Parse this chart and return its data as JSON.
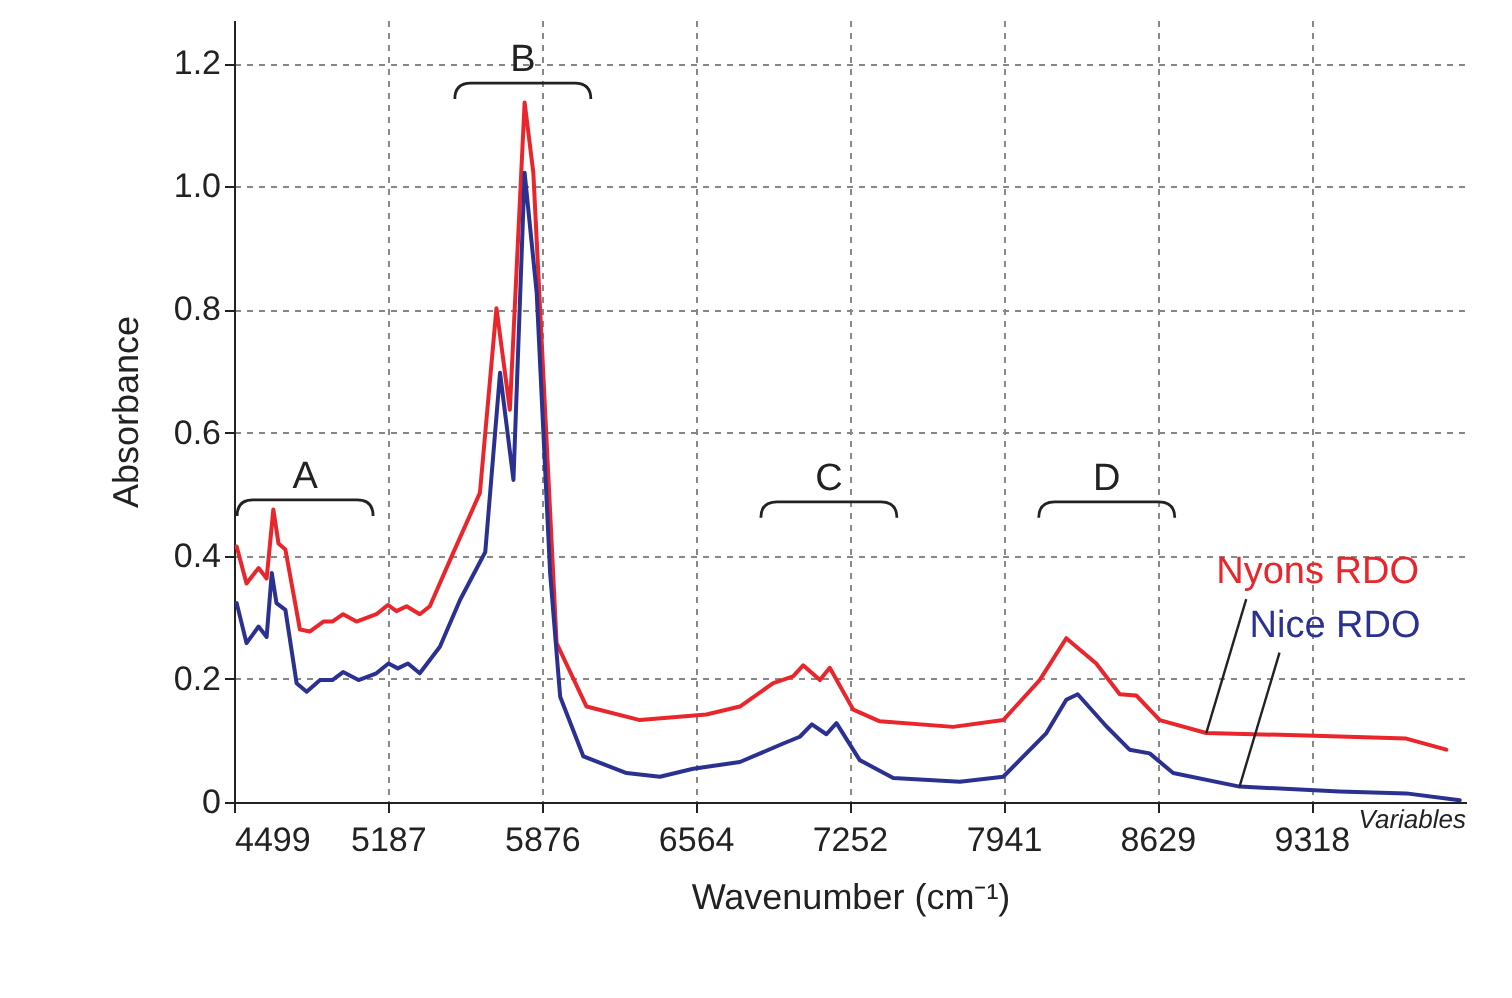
{
  "chart_data": {
    "type": "line",
    "xlabel": "Wavenumber (cm⁻¹)",
    "ylabel": "Absorbance",
    "xlim": [
      4499,
      10010
    ],
    "ylim": [
      0,
      1.27
    ],
    "xticks": [
      4499,
      5187,
      5876,
      6564,
      7252,
      7941,
      8629,
      9318
    ],
    "yticks": [
      0,
      0.2,
      0.4,
      0.6,
      0.8,
      {
        "value": 1,
        "label": "1.0"
      },
      1.2
    ],
    "grid": true,
    "line_style": "solid",
    "marker": "none",
    "annotations": [
      "A",
      "B",
      "C",
      "D",
      "Variables"
    ],
    "series": [
      {
        "name": "Nyons RDO",
        "color": "#e8262b",
        "x": [
          4511,
          4555,
          4609,
          4645,
          4675,
          4698,
          4729,
          4794,
          4839,
          4899,
          4939,
          4987,
          5047,
          5136,
          5187,
          5226,
          5271,
          5330,
          5375,
          5480,
          5599,
          5673,
          5733,
          5799,
          5838,
          5897,
          5942,
          6076,
          6315,
          6612,
          6762,
          6911,
          7000,
          7045,
          7120,
          7164,
          7269,
          7388,
          7716,
          7940,
          8103,
          8222,
          8356,
          8461,
          8535,
          8640,
          8848,
          9296,
          9743,
          9922
        ],
        "values": [
          0.415,
          0.355,
          0.38,
          0.363,
          0.475,
          0.42,
          0.41,
          0.28,
          0.277,
          0.293,
          0.293,
          0.305,
          0.293,
          0.305,
          0.32,
          0.31,
          0.318,
          0.305,
          0.318,
          0.405,
          0.502,
          0.802,
          0.637,
          1.136,
          1.022,
          0.589,
          0.258,
          0.155,
          0.133,
          0.142,
          0.155,
          0.193,
          0.204,
          0.222,
          0.198,
          0.218,
          0.15,
          0.131,
          0.122,
          0.133,
          0.198,
          0.266,
          0.225,
          0.175,
          0.173,
          0.133,
          0.112,
          0.108,
          0.103,
          0.085
        ]
      },
      {
        "name": "Nice RDO",
        "color": "#2b3190",
        "x": [
          4511,
          4555,
          4609,
          4645,
          4668,
          4689,
          4729,
          4779,
          4824,
          4884,
          4939,
          4987,
          5056,
          5136,
          5190,
          5232,
          5277,
          5330,
          5420,
          5510,
          5623,
          5689,
          5749,
          5799,
          5853,
          5913,
          5958,
          6062,
          6255,
          6404,
          6553,
          6762,
          6956,
          7030,
          7084,
          7149,
          7194,
          7298,
          7448,
          7746,
          7940,
          8133,
          8222,
          8273,
          8401,
          8505,
          8595,
          8700,
          8997,
          9444,
          9743,
          9982
        ],
        "values": [
          0.323,
          0.258,
          0.285,
          0.268,
          0.372,
          0.323,
          0.312,
          0.193,
          0.179,
          0.198,
          0.198,
          0.211,
          0.198,
          0.209,
          0.225,
          0.217,
          0.225,
          0.209,
          0.252,
          0.328,
          0.406,
          0.697,
          0.523,
          1.022,
          0.827,
          0.372,
          0.171,
          0.074,
          0.047,
          0.041,
          0.054,
          0.065,
          0.095,
          0.106,
          0.126,
          0.11,
          0.128,
          0.068,
          0.039,
          0.033,
          0.041,
          0.112,
          0.166,
          0.175,
          0.123,
          0.085,
          0.079,
          0.047,
          0.025,
          0.017,
          0.014,
          0.003
        ]
      }
    ]
  }
}
